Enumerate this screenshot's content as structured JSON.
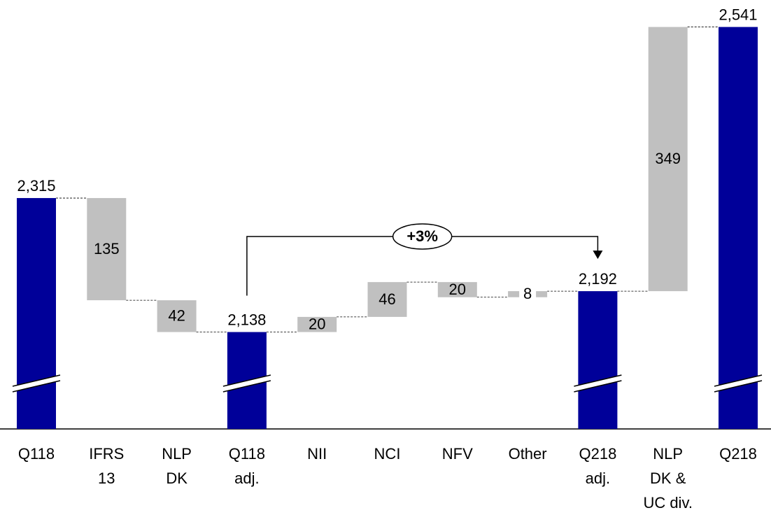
{
  "chart_data": {
    "type": "waterfall",
    "categories": [
      [
        "Q118"
      ],
      [
        "IFRS",
        "13"
      ],
      [
        "NLP",
        "DK"
      ],
      [
        "Q118",
        "adj."
      ],
      [
        "NII"
      ],
      [
        "NCI"
      ],
      [
        "NFV"
      ],
      [
        "Other"
      ],
      [
        "Q218",
        "adj."
      ],
      [
        "NLP",
        "DK &",
        "UC div."
      ],
      [
        "Q218"
      ]
    ],
    "values": [
      2315,
      -135,
      -42,
      2138,
      20,
      46,
      -20,
      8,
      2192,
      349,
      2541
    ],
    "value_labels": [
      "2,315",
      "135",
      "42",
      "2,138",
      "20",
      "46",
      "20",
      "8",
      "2,192",
      "349",
      "2,541"
    ],
    "measure": [
      "total",
      "relative",
      "relative",
      "total",
      "relative",
      "relative",
      "relative",
      "relative",
      "total",
      "relative",
      "total"
    ],
    "total_color": "#000099",
    "delta_color": "#c0c0c0",
    "ylim": [
      2010,
      2560
    ],
    "annotation": {
      "text": "+3%",
      "from": 3,
      "to": 8
    }
  }
}
